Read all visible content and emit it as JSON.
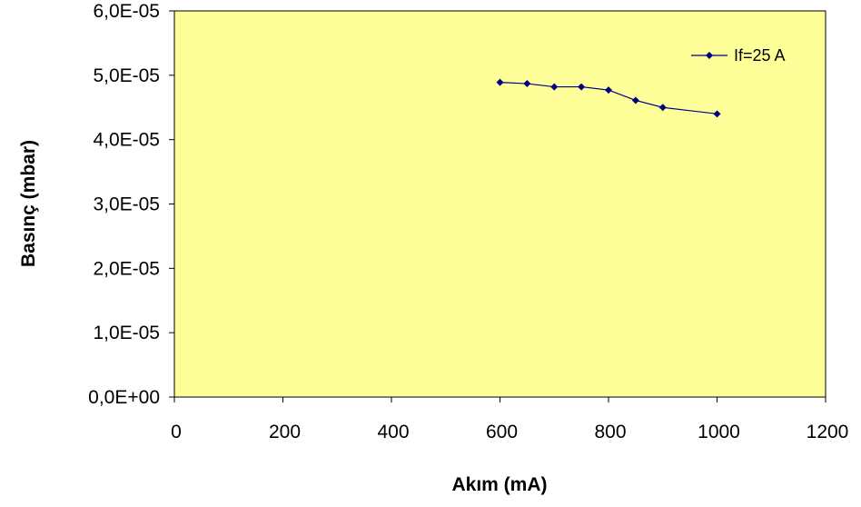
{
  "chart_data": {
    "type": "line",
    "xlabel": "Akım (mA)",
    "ylabel": "Basınç (mbar)",
    "xlim": [
      0,
      1200
    ],
    "ylim": [
      0,
      6e-05
    ],
    "x_ticks": [
      0,
      200,
      400,
      600,
      800,
      1000,
      1200
    ],
    "x_tick_labels": [
      "0",
      "200",
      "400",
      "600",
      "800",
      "1000",
      "1200"
    ],
    "y_ticks": [
      0,
      1e-05,
      2e-05,
      3e-05,
      4e-05,
      5e-05,
      6e-05
    ],
    "y_tick_labels": [
      "0,0E+00",
      "1,0E-05",
      "2,0E-05",
      "3,0E-05",
      "4,0E-05",
      "5,0E-05",
      "6,0E-05"
    ],
    "grid": false,
    "legend_position": "top-right",
    "plot_background": "#ffff99",
    "series": [
      {
        "name": "If=25 A",
        "color": "#000080",
        "marker": "diamond",
        "x": [
          600,
          650,
          700,
          750,
          800,
          850,
          900,
          1000
        ],
        "y": [
          4.89e-05,
          4.87e-05,
          4.82e-05,
          4.82e-05,
          4.77e-05,
          4.61e-05,
          4.5e-05,
          4.4e-05
        ]
      }
    ]
  }
}
